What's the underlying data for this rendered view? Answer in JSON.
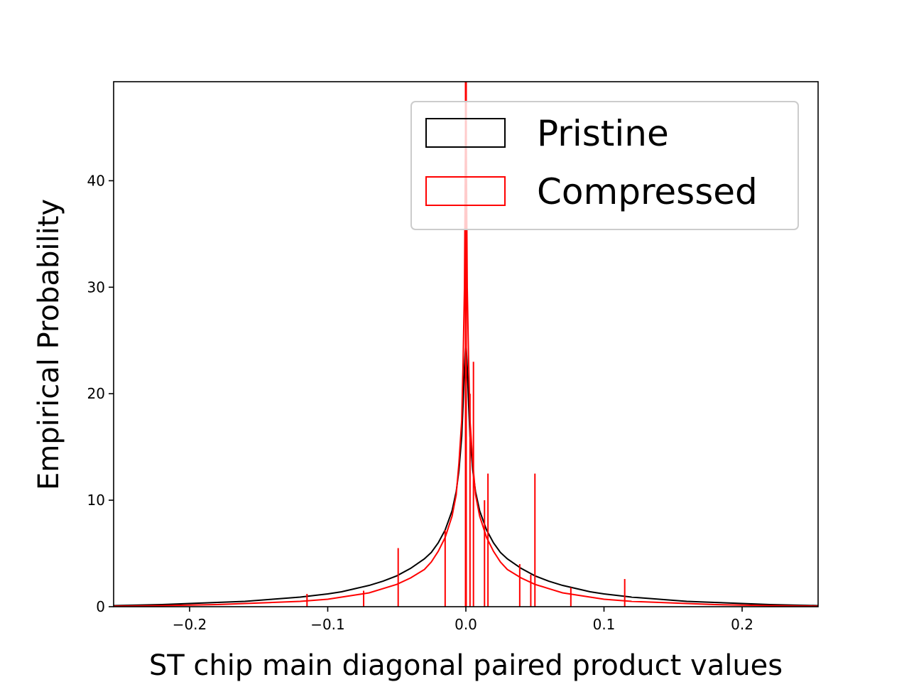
{
  "chart_data": {
    "type": "histogram",
    "xlabel": "ST chip main diagonal paired product values",
    "ylabel": "Empirical Probability",
    "xlim": [
      -0.255,
      0.255
    ],
    "ylim": [
      0,
      49.3
    ],
    "xticks": [
      -0.2,
      -0.1,
      0.0,
      0.1,
      0.2
    ],
    "xtick_labels": [
      "−0.2",
      "−0.1",
      "0.0",
      "0.1",
      "0.2"
    ],
    "yticks": [
      0,
      10,
      20,
      30,
      40
    ],
    "ytick_labels": [
      "0",
      "10",
      "20",
      "30",
      "40"
    ],
    "grid": false,
    "legend": {
      "placement": "upper-right"
    },
    "series": [
      {
        "name": "Pristine",
        "color": "#000000",
        "histtype": "step",
        "x": [
          -0.255,
          -0.22,
          -0.2,
          -0.18,
          -0.16,
          -0.14,
          -0.12,
          -0.1,
          -0.09,
          -0.08,
          -0.07,
          -0.06,
          -0.05,
          -0.04,
          -0.03,
          -0.025,
          -0.02,
          -0.015,
          -0.01,
          -0.007,
          -0.005,
          -0.003,
          -0.002,
          -0.001,
          0.0,
          0.001,
          0.002,
          0.003,
          0.005,
          0.007,
          0.01,
          0.015,
          0.02,
          0.025,
          0.03,
          0.04,
          0.05,
          0.06,
          0.07,
          0.08,
          0.09,
          0.1,
          0.12,
          0.14,
          0.16,
          0.18,
          0.2,
          0.22,
          0.255
        ],
        "y": [
          0.1,
          0.2,
          0.3,
          0.4,
          0.5,
          0.7,
          0.9,
          1.2,
          1.4,
          1.7,
          2.0,
          2.4,
          2.9,
          3.6,
          4.5,
          5.1,
          6.0,
          7.2,
          9.0,
          10.8,
          12.8,
          16.0,
          19.0,
          22.5,
          25.0,
          22.5,
          19.0,
          16.0,
          12.8,
          10.8,
          9.0,
          7.2,
          6.0,
          5.1,
          4.5,
          3.6,
          2.9,
          2.4,
          2.0,
          1.7,
          1.4,
          1.2,
          0.9,
          0.7,
          0.5,
          0.4,
          0.3,
          0.2,
          0.1
        ]
      },
      {
        "name": "Compressed",
        "color": "#ff0000",
        "histtype": "step",
        "x": [
          -0.255,
          -0.22,
          -0.2,
          -0.18,
          -0.16,
          -0.14,
          -0.12,
          -0.1,
          -0.09,
          -0.08,
          -0.07,
          -0.06,
          -0.05,
          -0.04,
          -0.03,
          -0.025,
          -0.02,
          -0.015,
          -0.01,
          -0.007,
          -0.005,
          -0.003,
          -0.002,
          -0.001,
          0.0,
          0.001,
          0.002,
          0.003,
          0.005,
          0.007,
          0.01,
          0.015,
          0.02,
          0.025,
          0.03,
          0.04,
          0.05,
          0.06,
          0.07,
          0.08,
          0.09,
          0.1,
          0.12,
          0.14,
          0.16,
          0.18,
          0.2,
          0.22,
          0.255
        ],
        "y": [
          0.05,
          0.1,
          0.15,
          0.2,
          0.3,
          0.4,
          0.5,
          0.7,
          0.9,
          1.1,
          1.3,
          1.7,
          2.1,
          2.7,
          3.5,
          4.2,
          5.2,
          6.5,
          8.5,
          10.5,
          13.5,
          17.5,
          23.0,
          30.0,
          49.3,
          30.0,
          23.0,
          17.5,
          13.5,
          10.5,
          8.5,
          6.5,
          5.2,
          4.2,
          3.5,
          2.7,
          2.1,
          1.7,
          1.3,
          1.1,
          0.9,
          0.7,
          0.5,
          0.4,
          0.3,
          0.2,
          0.15,
          0.1,
          0.05
        ],
        "spikes": [
          {
            "x": -0.115,
            "y": 1.2
          },
          {
            "x": -0.074,
            "y": 1.5
          },
          {
            "x": -0.049,
            "y": 5.5
          },
          {
            "x": -0.015,
            "y": 7.2
          },
          {
            "x": 0.0,
            "y": 49.3
          },
          {
            "x": 0.003,
            "y": 20.0
          },
          {
            "x": 0.0055,
            "y": 23.0
          },
          {
            "x": 0.0135,
            "y": 10.0
          },
          {
            "x": 0.016,
            "y": 12.5
          },
          {
            "x": 0.039,
            "y": 4.0
          },
          {
            "x": 0.047,
            "y": 3.0
          },
          {
            "x": 0.05,
            "y": 12.5
          },
          {
            "x": 0.076,
            "y": 1.8
          },
          {
            "x": 0.115,
            "y": 2.6
          }
        ]
      }
    ]
  }
}
